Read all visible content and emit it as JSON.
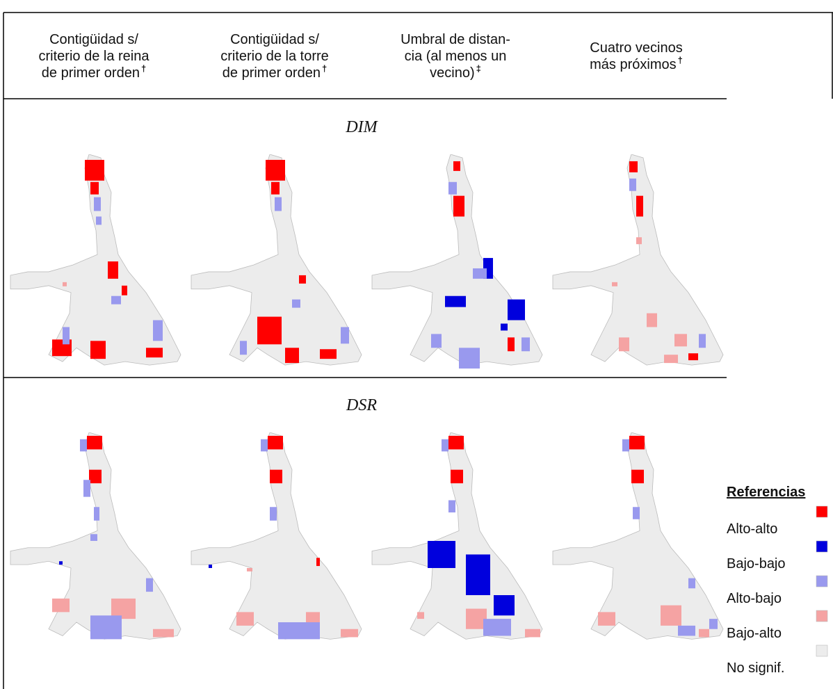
{
  "headers": [
    {
      "lines": [
        "Contigüidad s/",
        "criterio de la reina",
        "de primer orden"
      ],
      "mark": "†"
    },
    {
      "lines": [
        "Contigüidad s/",
        "criterio de la torre",
        "de primer orden"
      ],
      "mark": "†"
    },
    {
      "lines": [
        "Umbral de distan-",
        "cia (al menos un",
        "vecino)"
      ],
      "mark": "‡"
    },
    {
      "lines": [
        "Cuatro vecinos",
        "más próximos"
      ],
      "mark": "†"
    }
  ],
  "rows": [
    {
      "label": "DIM"
    },
    {
      "label": "DSR"
    }
  ],
  "legend": {
    "title": "Referencias",
    "items": [
      {
        "label": "Alto-alto",
        "color": "#ff0000"
      },
      {
        "label": "Bajo-bajo",
        "color": "#0000dd"
      },
      {
        "label": "Alto-bajo",
        "color": "#9999ee"
      },
      {
        "label": "Bajo-alto",
        "color": "#f5a3a3"
      },
      {
        "label": "No signif.",
        "color": "#ececec"
      }
    ]
  }
}
